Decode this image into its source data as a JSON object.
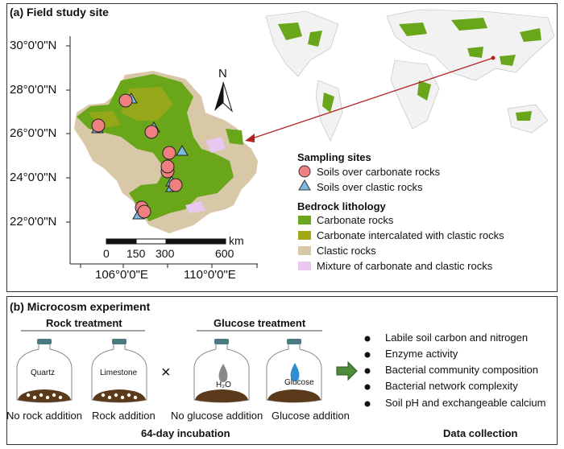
{
  "panel_a": {
    "title": "(a) Field study site",
    "lat_labels": [
      "30°0'0\"N",
      "28°0'0\"N",
      "26°0'0\"N",
      "24°0'0\"N",
      "22°0'0\"N"
    ],
    "lon_labels": [
      "106°0'0\"E",
      "110°0'0\"E"
    ],
    "north_label": "N",
    "scale": {
      "unit": "km",
      "ticks": [
        "0",
        "150",
        "300",
        "600"
      ]
    },
    "legend": {
      "sampling_title": "Sampling sites",
      "sampling": [
        {
          "label": "Soils over carbonate rocks",
          "symbol": "circle",
          "color": "#f08080"
        },
        {
          "label": "Soils over clastic rocks",
          "symbol": "triangle",
          "color": "#7fb8e0"
        }
      ],
      "lithology_title": "Bedrock lithology",
      "lithology": [
        {
          "label": "Carbonate rocks",
          "color": "#6aa61a"
        },
        {
          "label": "Carbonate intercalated with clastic rocks",
          "color": "#a3a81a"
        },
        {
          "label": "Clastic rocks",
          "color": "#d8c8a8"
        },
        {
          "label": "Mixture of carbonate and clastic rocks",
          "color": "#e8c8f0"
        }
      ]
    },
    "arrow_color": "#b22222"
  },
  "panel_b": {
    "title": "(b) Microcosm experiment",
    "rock_treatment": "Rock treatment",
    "glucose_treatment": "Glucose treatment",
    "times": "×",
    "jars": [
      {
        "label": "Quartz",
        "caption": "No rock addition"
      },
      {
        "label": "Limestone",
        "caption": "Rock addition"
      },
      {
        "label": "H₂O",
        "caption": "No glucose addition"
      },
      {
        "label": "Glucose",
        "caption": "Glucose addition"
      }
    ],
    "incubation": "64-day incubation",
    "data_collection_title": "Data collection",
    "data_collection": [
      "Labile soil carbon and nitrogen",
      "Enzyme activity",
      "Bacterial community composition",
      "Bacterial network complexity",
      "Soil pH and exchangeable calcium"
    ]
  }
}
